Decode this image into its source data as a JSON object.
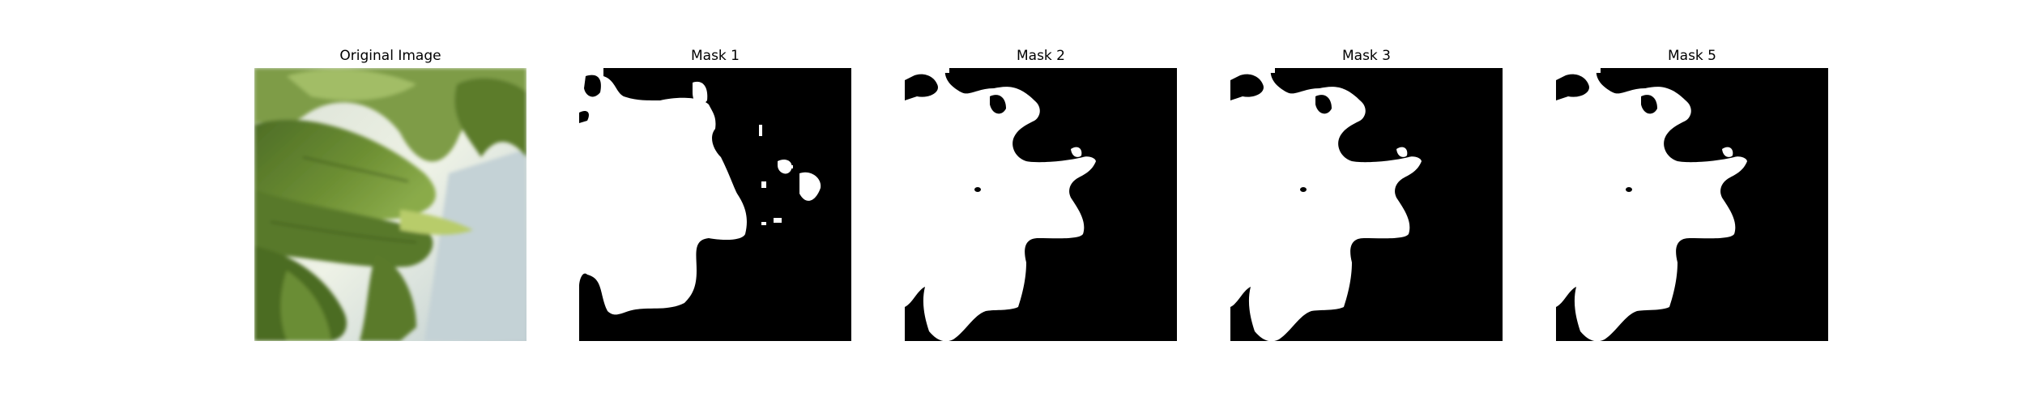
{
  "figure": {
    "panels": [
      {
        "title": "Original Image"
      },
      {
        "title": "Mask 1"
      },
      {
        "title": "Mask 2"
      },
      {
        "title": "Mask 3"
      },
      {
        "title": "Mask 5"
      }
    ]
  },
  "colors": {
    "background": "#ffffff",
    "mask_background": "#000000",
    "mask_foreground": "#ffffff",
    "leaf_dark": "#4a6a24",
    "leaf_mid": "#6f9134",
    "leaf_light": "#9dbb5e",
    "backdrop": "#c7d4d6"
  }
}
